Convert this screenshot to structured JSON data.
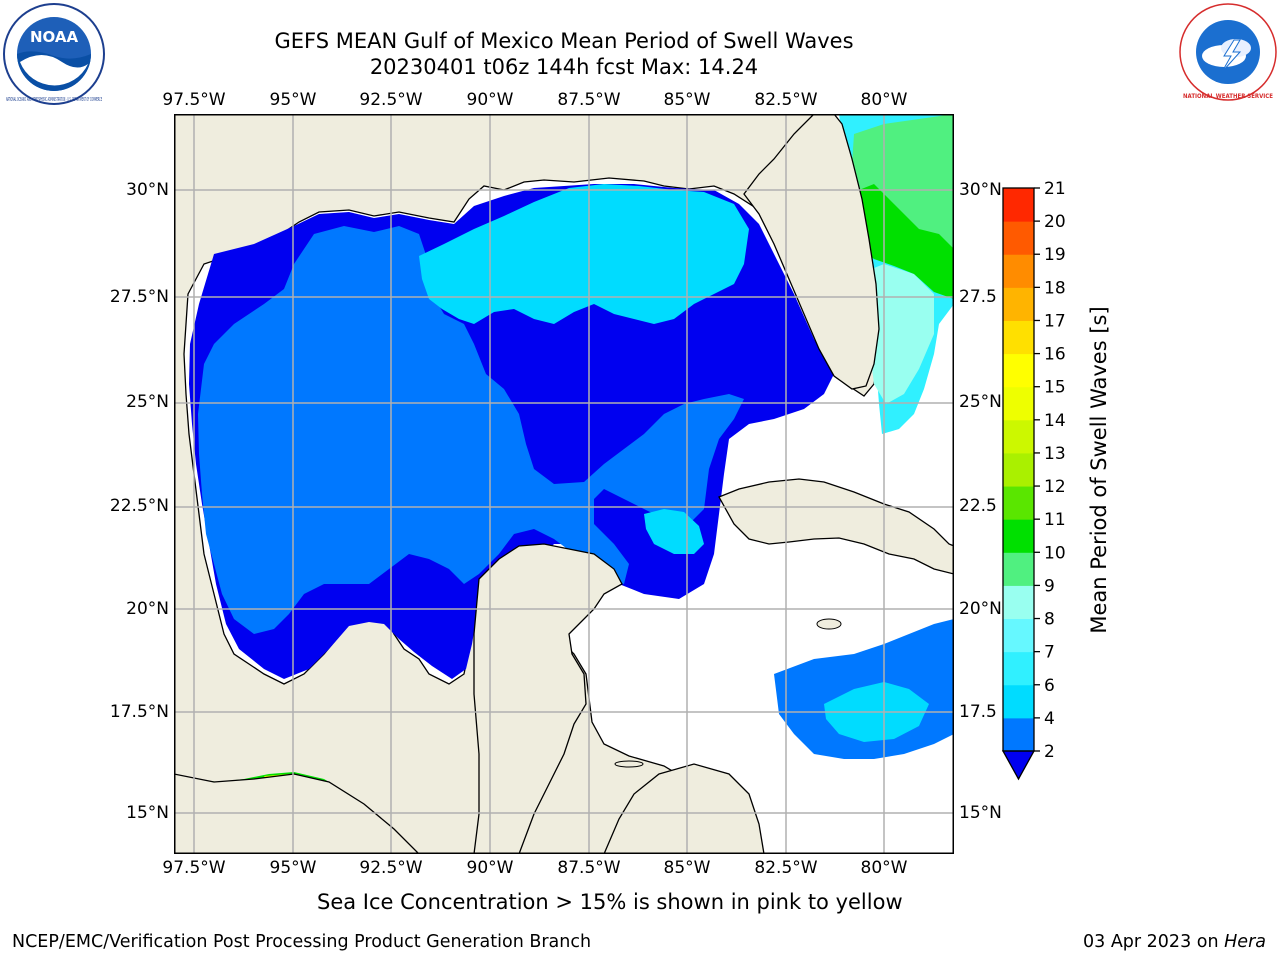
{
  "header": {
    "title_line1": "GEFS MEAN Gulf of Mexico Mean Period of Swell Waves",
    "title_line2": "20230401 t06z 144h fcst   Max: 14.24"
  },
  "logos": {
    "noaa_text": "NOAA",
    "noaa_ring": "NATIONAL OCEANIC AND ATMOSPHERIC ADMINISTRATION · U.S. DEPARTMENT OF COMMERCE",
    "nws_ring": "NATIONAL WEATHER SERVICE"
  },
  "map": {
    "lon_labels": [
      "97.5°W",
      "95°W",
      "92.5°W",
      "90°W",
      "87.5°W",
      "85°W",
      "82.5°W",
      "80°W"
    ],
    "lat_labels_left": [
      "30°N",
      "27.5°N",
      "25°N",
      "22.5°N",
      "20°N",
      "17.5°N",
      "15°N"
    ],
    "lat_labels_right": [
      "30°N",
      "27.5",
      "25°N",
      "22.5",
      "20°N",
      "17.5",
      "15°N"
    ],
    "lon_range": [
      -98,
      -78.2
    ],
    "lat_range": [
      14,
      31.7
    ],
    "grid": true,
    "colors": {
      "land": "#efedde",
      "ocean_missing": "#ffffff",
      "grid": "#b0b0b0"
    }
  },
  "colorbar": {
    "label": "Mean Period of Swell Waves [s]",
    "ticks": [
      "2",
      "4",
      "6",
      "7",
      "8",
      "9",
      "10",
      "11",
      "12",
      "13",
      "14",
      "15",
      "16",
      "17",
      "18",
      "19",
      "20",
      "21"
    ],
    "colors": [
      "#0078ff",
      "#00dcff",
      "#30f0ff",
      "#66f8ff",
      "#99fff0",
      "#50f080",
      "#00e000",
      "#5ae600",
      "#aaf000",
      "#ccf800",
      "#eeff00",
      "#ffff00",
      "#ffe000",
      "#ffb400",
      "#ff8c00",
      "#ff5a00",
      "#ff2800",
      "#ff0000"
    ],
    "extend_color": "#0000f0"
  },
  "caption": "Sea Ice Concentration > 15% is shown in pink to yellow",
  "footer": {
    "left": "NCEP/EMC/Verification Post Processing Product Generation Branch",
    "right_date": "03 Apr 2023 on ",
    "right_host": "Hera"
  }
}
